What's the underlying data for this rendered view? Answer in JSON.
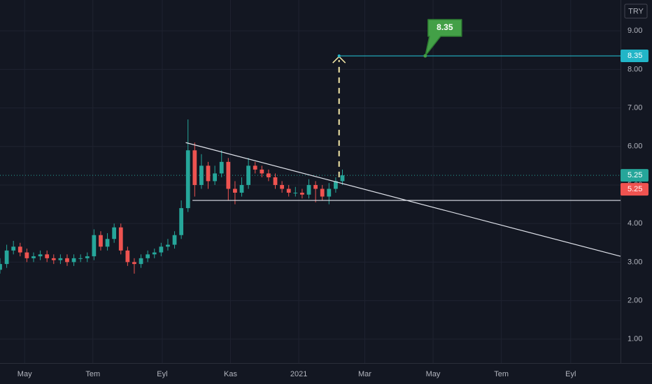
{
  "chart_data": {
    "type": "candlestick",
    "currency": "TRY",
    "up_color": "#26a69a",
    "down_color": "#ef5350",
    "grid": true,
    "x": [
      -22,
      -16,
      -10,
      -4,
      2,
      8,
      14,
      20,
      26,
      32,
      38,
      44,
      50,
      56,
      62,
      68,
      74,
      80,
      86,
      92,
      98,
      104,
      110,
      116,
      122,
      128,
      134,
      140,
      146,
      152,
      158,
      164,
      170,
      176,
      182,
      188,
      194,
      200,
      206,
      212,
      218,
      224,
      230,
      236,
      242,
      248,
      254,
      260,
      266,
      272,
      278,
      284
    ],
    "open": [
      2.8,
      2.95,
      3.3,
      3.4,
      3.25,
      3.1,
      3.15,
      3.2,
      3.1,
      3.05,
      3.1,
      3.0,
      3.1,
      3.1,
      3.15,
      3.7,
      3.4,
      3.6,
      3.9,
      3.3,
      3.0,
      2.95,
      3.1,
      3.2,
      3.25,
      3.4,
      3.45,
      3.7,
      4.4,
      5.9,
      5.0,
      5.5,
      5.1,
      5.3,
      5.6,
      4.9,
      4.8,
      5.0,
      5.5,
      5.4,
      5.3,
      5.2,
      5.0,
      4.9,
      4.8,
      4.8,
      4.75,
      5.0,
      4.9,
      4.7,
      4.9,
      5.1
    ],
    "high": [
      3.1,
      3.45,
      3.55,
      3.5,
      3.35,
      3.25,
      3.3,
      3.3,
      3.2,
      3.2,
      3.2,
      3.2,
      3.2,
      3.25,
      3.85,
      3.8,
      3.75,
      4.0,
      4.0,
      3.4,
      3.1,
      3.2,
      3.3,
      3.35,
      3.5,
      3.6,
      3.8,
      4.6,
      6.7,
      6.1,
      5.8,
      5.6,
      5.5,
      5.9,
      5.7,
      5.1,
      5.2,
      5.7,
      5.6,
      5.5,
      5.4,
      5.3,
      5.1,
      5.0,
      4.95,
      4.9,
      5.15,
      5.1,
      5.0,
      5.05,
      5.2,
      5.4
    ],
    "low": [
      2.7,
      2.85,
      3.2,
      3.15,
      3.0,
      3.0,
      3.05,
      3.0,
      2.95,
      2.95,
      2.9,
      2.9,
      3.0,
      3.0,
      3.05,
      3.3,
      3.3,
      3.5,
      3.2,
      2.9,
      2.7,
      2.85,
      3.0,
      3.1,
      3.15,
      3.3,
      3.35,
      3.6,
      4.3,
      4.7,
      4.9,
      4.9,
      5.0,
      5.2,
      4.6,
      4.5,
      4.7,
      4.9,
      5.3,
      5.2,
      5.1,
      4.9,
      4.8,
      4.7,
      4.7,
      4.65,
      4.65,
      4.55,
      4.6,
      4.5,
      4.8,
      5.0
    ],
    "close": [
      2.95,
      3.3,
      3.4,
      3.25,
      3.1,
      3.15,
      3.2,
      3.1,
      3.05,
      3.1,
      3.0,
      3.1,
      3.1,
      3.15,
      3.7,
      3.4,
      3.6,
      3.9,
      3.3,
      3.0,
      2.95,
      3.1,
      3.2,
      3.25,
      3.4,
      3.45,
      3.7,
      4.4,
      5.9,
      5.0,
      5.5,
      5.1,
      5.3,
      5.6,
      4.9,
      4.8,
      5.0,
      5.5,
      5.4,
      5.3,
      5.2,
      5.0,
      4.9,
      4.8,
      4.8,
      4.75,
      5.0,
      4.9,
      4.7,
      4.9,
      5.1,
      5.25
    ],
    "xlim": [
      -22,
      532.5
    ],
    "ylim": [
      0.38,
      9.8
    ],
    "xticks": [
      {
        "value": 0,
        "label": "May"
      },
      {
        "value": 61,
        "label": "Tem"
      },
      {
        "value": 123,
        "label": "Eyl"
      },
      {
        "value": 184,
        "label": "Kas"
      },
      {
        "value": 245,
        "label": "2021"
      },
      {
        "value": 304,
        "label": "Mar"
      },
      {
        "value": 365,
        "label": "May"
      },
      {
        "value": 426,
        "label": "Tem"
      },
      {
        "value": 488,
        "label": "Eyl"
      }
    ],
    "yticks": [
      {
        "value": 1,
        "label": "1.00"
      },
      {
        "value": 2,
        "label": "2.00"
      },
      {
        "value": 3,
        "label": "3.00"
      },
      {
        "value": 4,
        "label": "4.00"
      },
      {
        "value": 5,
        "label": "5.00"
      },
      {
        "value": 6,
        "label": "6.00"
      },
      {
        "value": 7,
        "label": "7.00"
      },
      {
        "value": 8,
        "label": "8.00"
      },
      {
        "value": 9,
        "label": "9.00"
      }
    ],
    "trend_lines": [
      {
        "x": [
          144,
          532.5
        ],
        "y": [
          6.1,
          3.15
        ],
        "color": "#e0e3eb"
      },
      {
        "x": [
          150,
          532.5
        ],
        "y": [
          4.6,
          4.6
        ],
        "color": "#e0e3eb"
      },
      {
        "x": [
          281,
          532.5
        ],
        "y": [
          8.35,
          8.35
        ],
        "color": "#22b5c7"
      }
    ],
    "projection": {
      "x": 281,
      "y": [
        5.2,
        8.35
      ],
      "color": "#f5e9a8"
    },
    "callout": {
      "label": "8.35",
      "x": 358,
      "y": 8.35,
      "color": "#43a047"
    },
    "last_price": {
      "value": 5.25,
      "color": "#26a69a"
    },
    "price_labels": [
      {
        "value": 8.35,
        "label": "8.35",
        "color": "#22b5c7"
      },
      {
        "value": 5.25,
        "label": "5.25",
        "color": "#26a69a"
      },
      {
        "value": 5.25,
        "label": "5.25",
        "color": "#ef5350"
      }
    ]
  }
}
